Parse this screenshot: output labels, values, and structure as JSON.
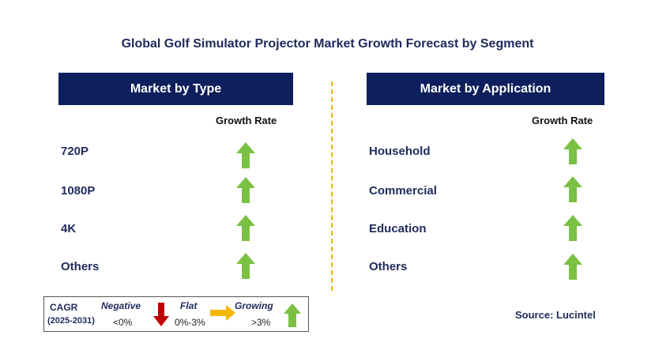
{
  "title": "Global Golf Simulator Projector Market Growth Forecast by Segment",
  "left_panel": {
    "header": "Market by Type",
    "growth_label": "Growth Rate",
    "items": [
      {
        "label": "720P",
        "trend": "growing"
      },
      {
        "label": "1080P",
        "trend": "growing"
      },
      {
        "label": "4K",
        "trend": "growing"
      },
      {
        "label": "Others",
        "trend": "growing"
      }
    ]
  },
  "right_panel": {
    "header": "Market by Application",
    "growth_label": "Growth Rate",
    "items": [
      {
        "label": "Household",
        "trend": "growing"
      },
      {
        "label": "Commercial",
        "trend": "growing"
      },
      {
        "label": "Education",
        "trend": "growing"
      },
      {
        "label": "Others",
        "trend": "growing"
      }
    ]
  },
  "legend": {
    "cagr": "CAGR",
    "period": "(2025-2031)",
    "negative_label": "Negative",
    "negative_range": "<0%",
    "flat_label": "Flat",
    "flat_range": "0%-3%",
    "growing_label": "Growing",
    "growing_range": ">3%"
  },
  "source": "Source: Lucintel",
  "colors": {
    "header_bg": "#0d1f5c",
    "growing": "#7ac143",
    "negative": "#c00000",
    "flat": "#f5b800",
    "divider": "#f0b400"
  }
}
